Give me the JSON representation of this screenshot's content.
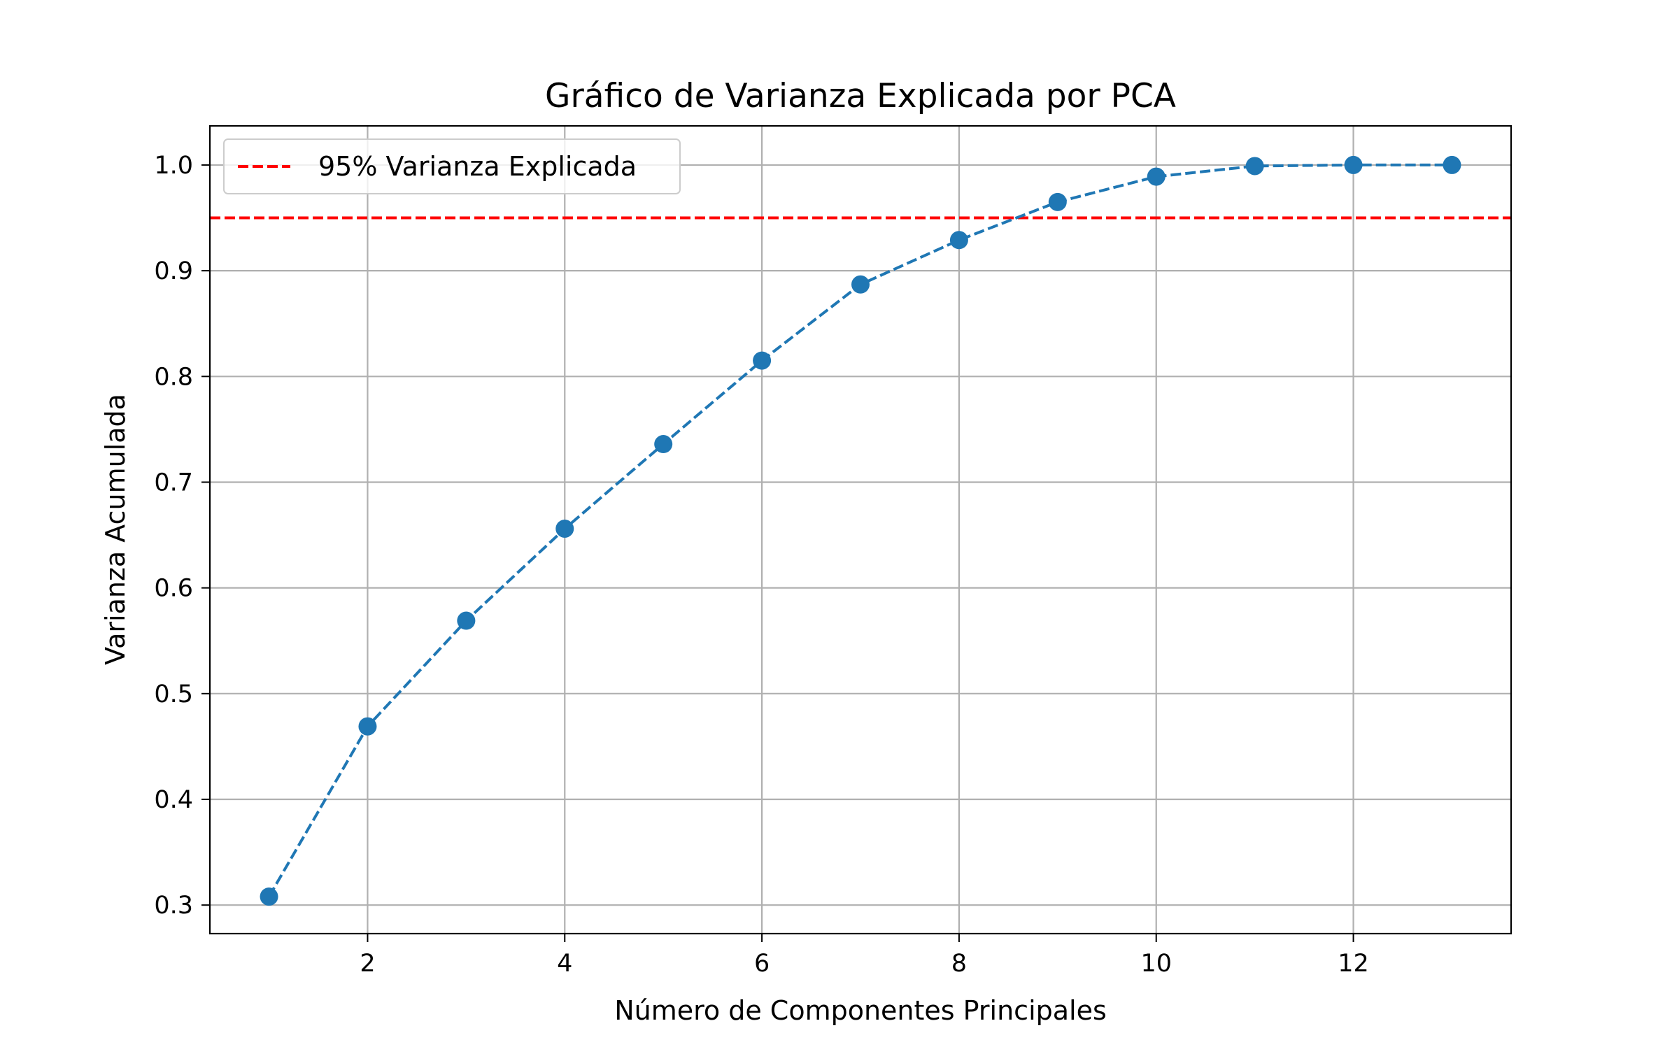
{
  "chart_data": {
    "type": "line",
    "title": "Gráfico de Varianza Explicada por PCA",
    "xlabel": "Número de Componentes Principales",
    "ylabel": "Varianza Acumulada",
    "xlim": [
      0.4,
      13.6
    ],
    "ylim": [
      0.273,
      1.037
    ],
    "x_ticks": [
      2,
      4,
      6,
      8,
      10,
      12
    ],
    "x_tick_labels": [
      "2",
      "4",
      "6",
      "8",
      "10",
      "12"
    ],
    "y_ticks": [
      0.3,
      0.4,
      0.5,
      0.6,
      0.7,
      0.8,
      0.9,
      1.0
    ],
    "y_tick_labels": [
      "0.3",
      "0.4",
      "0.5",
      "0.6",
      "0.7",
      "0.8",
      "0.9",
      "1.0"
    ],
    "grid": true,
    "legend_position": "top-left",
    "series": [
      {
        "x": [
          1,
          2,
          3,
          4,
          5,
          6,
          7,
          8,
          9,
          10,
          11,
          12,
          13
        ],
        "values": [
          0.308,
          0.469,
          0.569,
          0.656,
          0.736,
          0.815,
          0.887,
          0.929,
          0.965,
          0.989,
          0.999,
          1.0,
          1.0
        ],
        "color": "#1f77b4",
        "line_style": "dashed",
        "marker": "circle"
      }
    ],
    "reference_lines": [
      {
        "name": "95% Varianza Explicada",
        "orientation": "horizontal",
        "y": 0.95,
        "color": "#ff0000",
        "line_style": "dashed"
      }
    ]
  }
}
